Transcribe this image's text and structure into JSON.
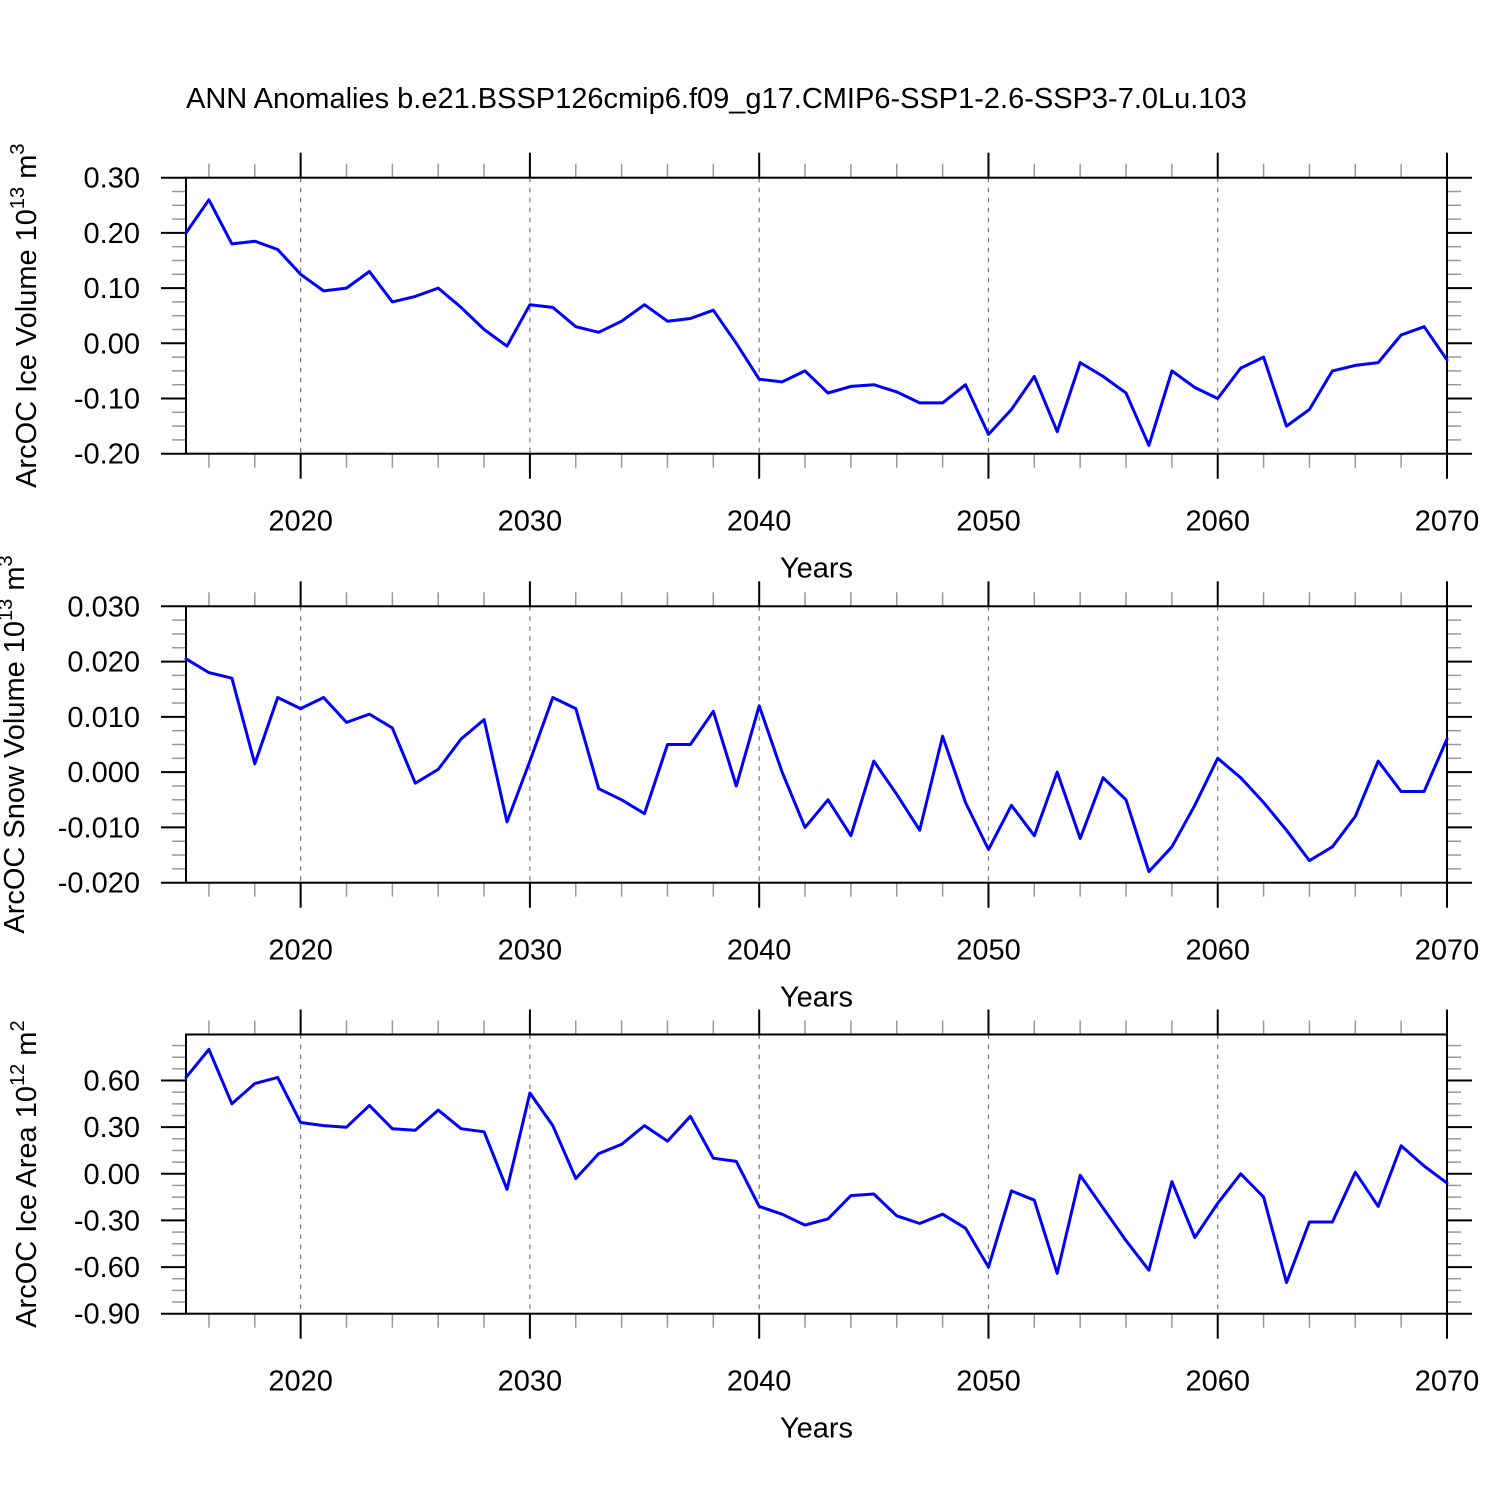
{
  "title": "ANN Anomalies b.e21.BSSP126cmip6.f09_g17.CMIP6-SSP1-2.6-SSP3-7.0Lu.103",
  "colors": {
    "line": "#0000ff",
    "axis": "#000000",
    "grid": "#777777",
    "minor_tick": "#999999",
    "background": "#ffffff",
    "text": "#000000"
  },
  "years": [
    2015,
    2016,
    2017,
    2018,
    2019,
    2020,
    2021,
    2022,
    2023,
    2024,
    2025,
    2026,
    2027,
    2028,
    2029,
    2030,
    2031,
    2032,
    2033,
    2034,
    2035,
    2036,
    2037,
    2038,
    2039,
    2040,
    2041,
    2042,
    2043,
    2044,
    2045,
    2046,
    2047,
    2048,
    2049,
    2050,
    2051,
    2052,
    2053,
    2054,
    2055,
    2056,
    2057,
    2058,
    2059,
    2060,
    2061,
    2062,
    2063,
    2064,
    2065,
    2066,
    2067,
    2068,
    2069,
    2070
  ],
  "x_axis": {
    "label": "Years",
    "start_year": 2015,
    "end_year": 2070,
    "major_ticks": [
      2020,
      2030,
      2040,
      2050,
      2060,
      2070
    ],
    "major_tick_labels": [
      "2020",
      "2030",
      "2040",
      "2050",
      "2060",
      "2070"
    ],
    "minor_tick_every_years": 2,
    "gridline_years": [
      2020,
      2030,
      2040,
      2050,
      2060
    ],
    "grid_style": "dashed-vertical"
  },
  "chart_data": [
    {
      "id": "ice-volume",
      "type": "line",
      "title": "",
      "xlabel": "Years",
      "ylabel_plain": "ArcOC Ice Volume 10^13 m^3",
      "ylabel_parts": [
        {
          "t": "ArcOC Ice Volume 10",
          "sup": false
        },
        {
          "t": "13",
          "sup": true
        },
        {
          "t": " m",
          "sup": false
        },
        {
          "t": "3",
          "sup": true
        }
      ],
      "ylim": [
        -0.2,
        0.3
      ],
      "y_minor_step": 0.025,
      "y_ticks": [
        {
          "v": 0.3,
          "label": "0.30"
        },
        {
          "v": 0.2,
          "label": "0.20"
        },
        {
          "v": 0.1,
          "label": "0.10"
        },
        {
          "v": 0.0,
          "label": "0.00"
        },
        {
          "v": -0.1,
          "label": "-0.10"
        },
        {
          "v": -0.2,
          "label": "-0.20"
        }
      ],
      "values": [
        0.2,
        0.26,
        0.18,
        0.185,
        0.17,
        0.125,
        0.095,
        0.1,
        0.13,
        0.075,
        0.085,
        0.1,
        0.065,
        0.025,
        -0.005,
        0.07,
        0.065,
        0.03,
        0.02,
        0.04,
        0.07,
        0.04,
        0.045,
        0.06,
        0.0,
        -0.065,
        -0.07,
        -0.05,
        -0.09,
        -0.078,
        -0.075,
        -0.088,
        -0.108,
        -0.108,
        -0.075,
        -0.165,
        -0.12,
        -0.06,
        -0.16,
        -0.035,
        -0.06,
        -0.09,
        -0.185,
        -0.05,
        -0.08,
        -0.1,
        -0.045,
        -0.025,
        -0.15,
        -0.12,
        -0.05,
        -0.04,
        -0.035,
        0.015,
        0.03,
        -0.03
      ]
    },
    {
      "id": "snow-volume",
      "type": "line",
      "title": "",
      "xlabel": "Years",
      "ylabel_plain": "ArcOC Snow Volume 10^13 m^3",
      "ylabel_parts": [
        {
          "t": "ArcOC Snow Volume 10",
          "sup": false
        },
        {
          "t": "13",
          "sup": true
        },
        {
          "t": " m",
          "sup": false
        },
        {
          "t": "3",
          "sup": true
        }
      ],
      "ylim": [
        -0.02,
        0.03
      ],
      "y_minor_step": 0.0025,
      "y_ticks": [
        {
          "v": 0.03,
          "label": "0.030"
        },
        {
          "v": 0.02,
          "label": "0.020"
        },
        {
          "v": 0.01,
          "label": "0.010"
        },
        {
          "v": 0.0,
          "label": "0.000"
        },
        {
          "v": -0.01,
          "label": "-0.010"
        },
        {
          "v": -0.02,
          "label": "-0.020"
        }
      ],
      "values": [
        0.0205,
        0.018,
        0.017,
        0.0015,
        0.0135,
        0.0115,
        0.0135,
        0.009,
        0.0105,
        0.008,
        -0.002,
        0.0005,
        0.006,
        0.0095,
        -0.009,
        0.002,
        0.0135,
        0.0115,
        -0.003,
        -0.005,
        -0.0075,
        0.005,
        0.005,
        0.011,
        -0.0025,
        0.012,
        0.0,
        -0.01,
        -0.005,
        -0.0115,
        0.002,
        -0.004,
        -0.0105,
        0.0065,
        -0.0055,
        -0.014,
        -0.006,
        -0.0115,
        0.0,
        -0.012,
        -0.001,
        -0.005,
        -0.018,
        -0.0135,
        -0.006,
        0.0025,
        -0.001,
        -0.0055,
        -0.0105,
        -0.016,
        -0.0135,
        -0.008,
        0.002,
        -0.0035,
        -0.0035,
        0.006
      ]
    },
    {
      "id": "ice-area",
      "type": "line",
      "title": "",
      "xlabel": "Years",
      "ylabel_plain": "ArcOC Ice Area 10^12 m^2",
      "ylabel_parts": [
        {
          "t": "ArcOC Ice Area 10",
          "sup": false
        },
        {
          "t": "12",
          "sup": true
        },
        {
          "t": " m",
          "sup": false
        },
        {
          "t": "2",
          "sup": true
        }
      ],
      "ylim": [
        -0.9,
        0.896
      ],
      "y_minor_step": 0.075,
      "y_ticks": [
        {
          "v": 0.6,
          "label": "0.60"
        },
        {
          "v": 0.3,
          "label": "0.30"
        },
        {
          "v": 0.0,
          "label": "0.00"
        },
        {
          "v": -0.3,
          "label": "-0.30"
        },
        {
          "v": -0.6,
          "label": "-0.60"
        },
        {
          "v": -0.9,
          "label": "-0.90"
        }
      ],
      "values": [
        0.62,
        0.8,
        0.45,
        0.58,
        0.62,
        0.33,
        0.31,
        0.3,
        0.44,
        0.29,
        0.28,
        0.41,
        0.29,
        0.27,
        -0.1,
        0.52,
        0.31,
        -0.03,
        0.13,
        0.19,
        0.31,
        0.21,
        0.37,
        0.1,
        0.08,
        -0.21,
        -0.26,
        -0.33,
        -0.29,
        -0.14,
        -0.13,
        -0.27,
        -0.32,
        -0.26,
        -0.35,
        -0.6,
        -0.11,
        -0.17,
        -0.64,
        -0.01,
        -0.22,
        -0.43,
        -0.62,
        -0.05,
        -0.41,
        -0.19,
        0.0,
        -0.15,
        -0.7,
        -0.31,
        -0.31,
        0.01,
        -0.21,
        0.18,
        0.05,
        -0.06
      ]
    }
  ]
}
